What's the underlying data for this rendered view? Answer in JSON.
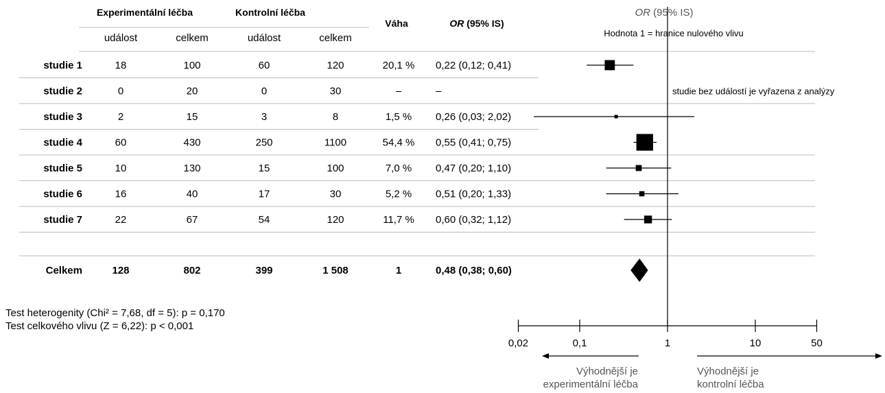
{
  "chart_data": {
    "type": "forest",
    "headers": {
      "experimental": "Experimentální léčba",
      "control": "Kontrolní léčba",
      "event": "událost",
      "total": "celkem",
      "weight": "Váha",
      "or_prefix": "OR",
      "or_suffix": " (95% IS)"
    },
    "plot_header": {
      "or_prefix": "OR",
      "or_suffix": " (95% IS)",
      "null_line_note": "Hodnota 1 = hranice nulového vlivu"
    },
    "studies": [
      {
        "label": "studie 1",
        "exp_events": "18",
        "exp_total": "100",
        "ctrl_events": "60",
        "ctrl_total": "120",
        "weight": "20,1 %",
        "or_text": "0,22 (0,12; 0,41)",
        "or": 0.22,
        "lo": 0.12,
        "hi": 0.41,
        "w": 20.1
      },
      {
        "label": "studie 2",
        "exp_events": "0",
        "exp_total": "20",
        "ctrl_events": "0",
        "ctrl_total": "30",
        "weight": "–",
        "or_text": "–",
        "or": null,
        "lo": null,
        "hi": null,
        "w": 0,
        "note": "studie bez událostí je vyřazena z analýzy"
      },
      {
        "label": "studie 3",
        "exp_events": "2",
        "exp_total": "15",
        "ctrl_events": "3",
        "ctrl_total": "8",
        "weight": "1,5 %",
        "or_text": "0,26 (0,03; 2,02)",
        "or": 0.26,
        "lo": 0.03,
        "hi": 2.02,
        "w": 1.5
      },
      {
        "label": "studie 4",
        "exp_events": "60",
        "exp_total": "430",
        "ctrl_events": "250",
        "ctrl_total": "1100",
        "weight": "54,4 %",
        "or_text": "0,55 (0,41; 0,75)",
        "or": 0.55,
        "lo": 0.41,
        "hi": 0.75,
        "w": 54.4
      },
      {
        "label": "studie 5",
        "exp_events": "10",
        "exp_total": "130",
        "ctrl_events": "15",
        "ctrl_total": "100",
        "weight": "7,0 %",
        "or_text": "0,47 (0,20; 1,10)",
        "or": 0.47,
        "lo": 0.2,
        "hi": 1.1,
        "w": 7.0
      },
      {
        "label": "studie 6",
        "exp_events": "16",
        "exp_total": "40",
        "ctrl_events": "17",
        "ctrl_total": "30",
        "weight": "5,2 %",
        "or_text": "0,51 (0,20; 1,33)",
        "or": 0.51,
        "lo": 0.2,
        "hi": 1.33,
        "w": 5.2
      },
      {
        "label": "studie 7",
        "exp_events": "22",
        "exp_total": "67",
        "ctrl_events": "54",
        "ctrl_total": "120",
        "weight": "11,7 %",
        "or_text": "0,60 (0,32; 1,12)",
        "or": 0.6,
        "lo": 0.32,
        "hi": 1.12,
        "w": 11.7
      }
    ],
    "total": {
      "label": "Celkem",
      "exp_events": "128",
      "exp_total": "802",
      "ctrl_events": "399",
      "ctrl_total": "1 508",
      "weight": "1",
      "or_text": "0,48 (0,38; 0,60)",
      "or": 0.48,
      "lo": 0.38,
      "hi": 0.6
    },
    "x_axis": {
      "scale": "log",
      "ticks": [
        0.02,
        0.1,
        1,
        10,
        50
      ],
      "tick_labels": [
        "0,02",
        "0,1",
        "1",
        "10",
        "50"
      ],
      "range": [
        0.02,
        50
      ]
    },
    "direction_labels": {
      "left_line1": "Výhodnější je",
      "left_line2": "experimentální léčba",
      "right_line1": "Výhodnější je",
      "right_line2": "kontrolní léčba"
    },
    "tests": {
      "heterogeneity": "Test heterogenity (Chi² = 7,68, df = 5): p = 0,170",
      "overall": "Test celkového vlivu (Z = 6,22): p < 0,001"
    }
  }
}
